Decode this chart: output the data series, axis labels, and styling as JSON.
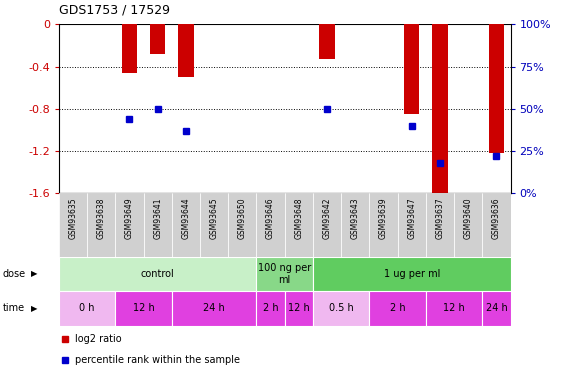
{
  "title": "GDS1753 / 17529",
  "samples": [
    "GSM93635",
    "GSM93638",
    "GSM93649",
    "GSM93641",
    "GSM93644",
    "GSM93645",
    "GSM93650",
    "GSM93646",
    "GSM93648",
    "GSM93642",
    "GSM93643",
    "GSM93639",
    "GSM93647",
    "GSM93637",
    "GSM93640",
    "GSM93636"
  ],
  "log2_ratio": [
    0,
    0,
    -0.46,
    -0.28,
    -0.5,
    0,
    0,
    0,
    0,
    -0.33,
    0,
    0,
    -0.85,
    -1.6,
    0,
    -1.22
  ],
  "percentile_rank": [
    null,
    null,
    44,
    50,
    37,
    null,
    null,
    null,
    null,
    50,
    null,
    null,
    40,
    18,
    null,
    22
  ],
  "ylim_min": -1.6,
  "ylim_max": 0,
  "yticks_left": [
    0,
    -0.4,
    -0.8,
    -1.2,
    -1.6
  ],
  "yticks_right_pct": [
    100,
    75,
    50,
    25,
    0
  ],
  "dose_groups": [
    {
      "label": "control",
      "start": 0,
      "end": 6,
      "color": "#c8f0c8"
    },
    {
      "label": "100 ng per\nml",
      "start": 7,
      "end": 8,
      "color": "#88d888"
    },
    {
      "label": "1 ug per ml",
      "start": 9,
      "end": 15,
      "color": "#60cc60"
    }
  ],
  "time_groups": [
    {
      "label": "0 h",
      "start": 0,
      "end": 1,
      "color": "#f0b8f0"
    },
    {
      "label": "12 h",
      "start": 2,
      "end": 3,
      "color": "#e040e0"
    },
    {
      "label": "24 h",
      "start": 4,
      "end": 6,
      "color": "#e040e0"
    },
    {
      "label": "2 h",
      "start": 7,
      "end": 7,
      "color": "#e040e0"
    },
    {
      "label": "12 h",
      "start": 8,
      "end": 8,
      "color": "#e040e0"
    },
    {
      "label": "0.5 h",
      "start": 9,
      "end": 10,
      "color": "#f0b8f0"
    },
    {
      "label": "2 h",
      "start": 11,
      "end": 12,
      "color": "#e040e0"
    },
    {
      "label": "12 h",
      "start": 13,
      "end": 14,
      "color": "#e040e0"
    },
    {
      "label": "24 h",
      "start": 15,
      "end": 15,
      "color": "#e040e0"
    }
  ],
  "bar_color": "#cc0000",
  "dot_color": "#0000cc",
  "label_color_left": "#cc0000",
  "label_color_right": "#0000bb"
}
